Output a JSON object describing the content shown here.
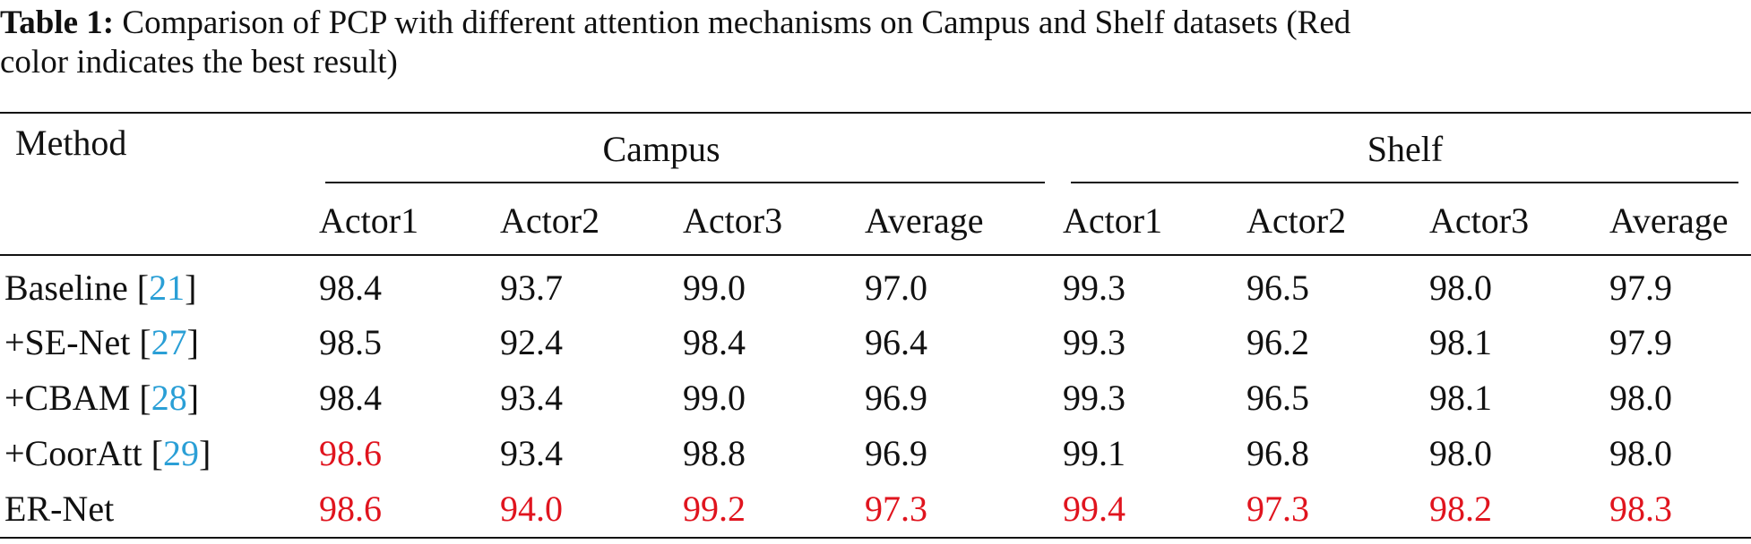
{
  "caption": {
    "label": "Table 1:",
    "line1": "Comparison of PCP with different attention mechanisms on Campus and Shelf datasets (Red",
    "line2": "color indicates the best result)"
  },
  "table": {
    "method_header": "Method",
    "groups": [
      "Campus",
      "Shelf"
    ],
    "subheaders": [
      "Actor1",
      "Actor2",
      "Actor3",
      "Average",
      "Actor1",
      "Actor2",
      "Actor3",
      "Average"
    ],
    "rows": [
      {
        "name": "Baseline",
        "ref": "21",
        "values": [
          "98.4",
          "93.7",
          "99.0",
          "97.0",
          "99.3",
          "96.5",
          "98.0",
          "97.9"
        ],
        "best": [
          false,
          false,
          false,
          false,
          false,
          false,
          false,
          false
        ]
      },
      {
        "name": "+SE-Net",
        "ref": "27",
        "values": [
          "98.5",
          "92.4",
          "98.4",
          "96.4",
          "99.3",
          "96.2",
          "98.1",
          "97.9"
        ],
        "best": [
          false,
          false,
          false,
          false,
          false,
          false,
          false,
          false
        ]
      },
      {
        "name": "+CBAM",
        "ref": "28",
        "values": [
          "98.4",
          "93.4",
          "99.0",
          "96.9",
          "99.3",
          "96.5",
          "98.1",
          "98.0"
        ],
        "best": [
          false,
          false,
          false,
          false,
          false,
          false,
          false,
          false
        ]
      },
      {
        "name": "+CoorAtt",
        "ref": "29",
        "values": [
          "98.6",
          "93.4",
          "98.8",
          "96.9",
          "99.1",
          "96.8",
          "98.0",
          "98.0"
        ],
        "best": [
          true,
          false,
          false,
          false,
          false,
          false,
          false,
          false
        ]
      },
      {
        "name": "ER-Net",
        "ref": "",
        "values": [
          "98.6",
          "94.0",
          "99.2",
          "97.3",
          "99.4",
          "97.3",
          "98.2",
          "98.3"
        ],
        "best": [
          true,
          true,
          true,
          true,
          true,
          true,
          true,
          true
        ]
      }
    ]
  },
  "colors": {
    "best": "#e0141e",
    "ref": "#2a9fd6"
  }
}
